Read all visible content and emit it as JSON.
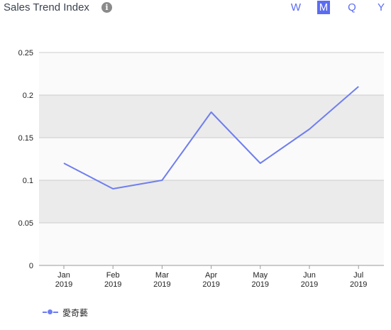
{
  "header": {
    "title": "Sales Trend Index",
    "info_icon": "info-icon",
    "periods": [
      {
        "label": "W",
        "active": false
      },
      {
        "label": "M",
        "active": true
      },
      {
        "label": "Q",
        "active": false
      },
      {
        "label": "Y",
        "active": false
      }
    ]
  },
  "colors": {
    "accent": "#5b6cf3",
    "series": "#6f7ef0",
    "band": "#ebebeb",
    "plot_bg": "#fafafa",
    "grid": "#cccccc"
  },
  "chart_data": {
    "type": "line",
    "title": "Sales Trend Index",
    "xlabel": "",
    "ylabel": "",
    "categories": [
      [
        "Jan",
        "2019"
      ],
      [
        "Feb",
        "2019"
      ],
      [
        "Mar",
        "2019"
      ],
      [
        "Apr",
        "2019"
      ],
      [
        "May",
        "2019"
      ],
      [
        "Jun",
        "2019"
      ],
      [
        "Jul",
        "2019"
      ]
    ],
    "series": [
      {
        "name": "愛奇藝",
        "values": [
          0.12,
          0.09,
          0.1,
          0.18,
          0.12,
          0.16,
          0.21
        ]
      }
    ],
    "ylim": [
      0,
      0.25
    ],
    "yticks": [
      "0",
      "0.05",
      "0.1",
      "0.15",
      "0.2",
      "0.25"
    ],
    "grid": true,
    "legend": "bottom-left"
  }
}
